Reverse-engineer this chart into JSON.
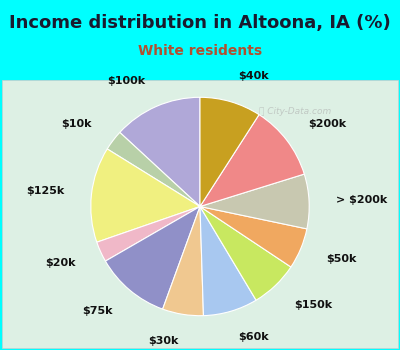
{
  "title": "Income distribution in Altoona, IA (%)",
  "subtitle": "White residents",
  "title_color": "#1a1a2e",
  "subtitle_color": "#b05030",
  "background_outer": "#00ffff",
  "background_inner_color": "#d8ede0",
  "watermark": "City-Data.com",
  "labels": [
    "$100k",
    "$10k",
    "$125k",
    "$20k",
    "$75k",
    "$30k",
    "$60k",
    "$150k",
    "$50k",
    "> $200k",
    "$200k",
    "$40k"
  ],
  "values": [
    13,
    3,
    14,
    3,
    11,
    6,
    8,
    7,
    6,
    8,
    11,
    9
  ],
  "colors": [
    "#b0a8d8",
    "#b8d0a8",
    "#f0f080",
    "#f0b8c8",
    "#9090c8",
    "#f0c890",
    "#a8c8f0",
    "#c8e860",
    "#f0a860",
    "#c8c8b0",
    "#f08888",
    "#c8a020"
  ],
  "label_fontsize": 8,
  "title_fontsize": 13,
  "subtitle_fontsize": 10,
  "labeldistance": 1.25,
  "startangle": 90
}
